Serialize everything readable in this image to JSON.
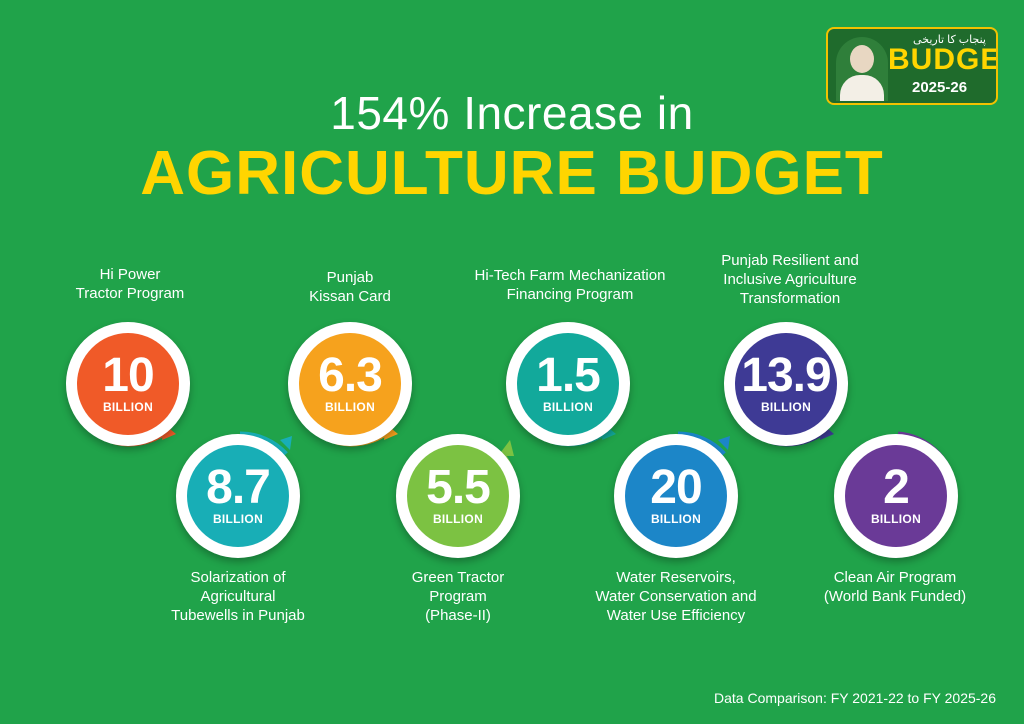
{
  "header": {
    "title_line1": "154% Increase in",
    "title_line2": "AGRICULTURE BUDGET"
  },
  "logo": {
    "urdu_text": "پنجاب کا تاریخی",
    "budget_text": "BUDGET",
    "year_text": "2025-26"
  },
  "programs": [
    {
      "value": "10",
      "unit": "BILLION",
      "label": "Hi Power\nTractor Program",
      "color": "#f05a28"
    },
    {
      "value": "8.7",
      "unit": "BILLION",
      "label": "Solarization of\nAgricultural\nTubewells in Punjab",
      "color": "#18aeb6"
    },
    {
      "value": "6.3",
      "unit": "BILLION",
      "label": "Punjab\nKissan Card",
      "color": "#f6a21d"
    },
    {
      "value": "5.5",
      "unit": "BILLION",
      "label": "Green Tractor\nProgram\n(Phase-II)",
      "color": "#7cc242"
    },
    {
      "value": "1.5",
      "unit": "BILLION",
      "label": "Hi-Tech Farm Mechanization\nFinancing Program",
      "color": "#12a99b"
    },
    {
      "value": "20",
      "unit": "BILLION",
      "label": "Water Reservoirs,\nWater Conservation and\nWater Use Efficiency",
      "color": "#1c86c8"
    },
    {
      "value": "13.9",
      "unit": "BILLION",
      "label": "Punjab Resilient and\nInclusive Agriculture\nTransformation",
      "color": "#3e3a95"
    },
    {
      "value": "2",
      "unit": "BILLION",
      "label": "Clean Air Program\n(World Bank Funded)",
      "color": "#6a3a97"
    }
  ],
  "footer": {
    "note": "Data Comparison: FY 2021-22 to FY 2025-26"
  }
}
